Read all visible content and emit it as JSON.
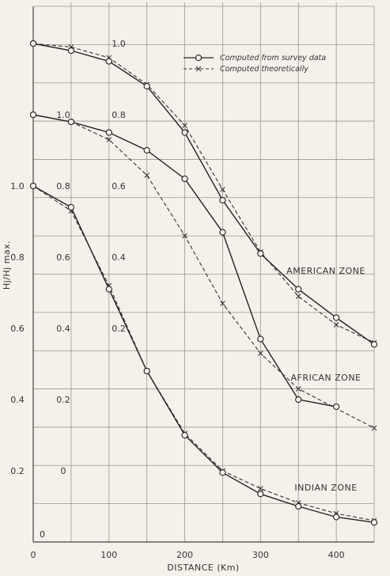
{
  "chart_data": {
    "type": "line",
    "xlabel": "DISTANCE (Km)",
    "ylabel": "Hj/Hj max.",
    "xlim": [
      0,
      450
    ],
    "x_ticks": [
      "0",
      "100",
      "200",
      "300",
      "400"
    ],
    "scales": [
      {
        "name": "indian",
        "ticks": [
          "0",
          "0.2",
          "0.4",
          "0.6",
          "0.8",
          "1.0"
        ]
      },
      {
        "name": "african",
        "ticks": [
          "0",
          "0.2",
          "0.4",
          "0.6",
          "0.8",
          "1.0"
        ]
      },
      {
        "name": "american",
        "ticks": [
          "0.2",
          "0.4",
          "0.6",
          "0.8",
          "1.0"
        ]
      }
    ],
    "legend": {
      "position": "top-right",
      "entries": [
        {
          "label": "Computed from survey data",
          "marker": "circle",
          "style": "solid"
        },
        {
          "label": "Computed theoretically",
          "marker": "x",
          "style": "dashed"
        }
      ]
    },
    "zones": [
      {
        "label": "AMERICAN ZONE",
        "offset": 0.4,
        "survey": {
          "x": [
            0,
            50,
            100,
            150,
            200,
            250,
            300,
            350,
            400,
            450
          ],
          "y": [
            1.0,
            0.98,
            0.95,
            0.88,
            0.75,
            0.56,
            0.41,
            0.31,
            0.23,
            0.155
          ]
        },
        "theory": {
          "x": [
            0,
            50,
            100,
            150,
            200,
            250,
            300,
            350,
            400,
            450
          ],
          "y": [
            1.0,
            0.99,
            0.96,
            0.885,
            0.77,
            0.59,
            0.415,
            0.29,
            0.21,
            0.16
          ]
        }
      },
      {
        "label": "AFRICAN ZONE",
        "offset": 0.2,
        "survey": {
          "x": [
            0,
            50,
            100,
            150,
            200,
            250,
            300,
            350,
            400
          ],
          "y": [
            1.0,
            0.98,
            0.95,
            0.9,
            0.82,
            0.67,
            0.37,
            0.2,
            0.18
          ]
        },
        "theory": {
          "x": [
            0,
            50,
            100,
            150,
            200,
            250,
            300,
            350,
            450
          ],
          "y": [
            1.0,
            0.98,
            0.93,
            0.83,
            0.66,
            0.47,
            0.33,
            0.23,
            0.12
          ]
        }
      },
      {
        "label": "INDIAN ZONE",
        "offset": 0.0,
        "survey": {
          "x": [
            0,
            50,
            100,
            150,
            200,
            250,
            300,
            350,
            400,
            450
          ],
          "y": [
            1.0,
            0.94,
            0.71,
            0.48,
            0.3,
            0.195,
            0.135,
            0.1,
            0.07,
            0.055
          ]
        },
        "theory": {
          "x": [
            0,
            50,
            100,
            150,
            200,
            250,
            300,
            350,
            400,
            450
          ],
          "y": [
            1.0,
            0.93,
            0.72,
            0.48,
            0.305,
            0.2,
            0.15,
            0.11,
            0.08,
            0.06
          ]
        }
      }
    ],
    "grid": true
  }
}
